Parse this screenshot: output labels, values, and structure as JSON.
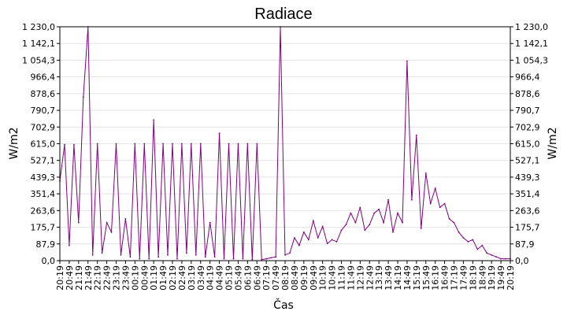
{
  "chart_data": {
    "type": "line",
    "title": "Radiace",
    "xlabel": "Čas",
    "ylabel": "W/m2",
    "ylabel_right": "W/m2",
    "grid": true,
    "ylim": [
      0,
      1230
    ],
    "yticks": [
      "0,0",
      "87,9",
      "175,7",
      "263,6",
      "351,4",
      "439,3",
      "527,1",
      "615,0",
      "702,9",
      "790,7",
      "878,6",
      "966,4",
      "1 054,3",
      "1 142,1",
      "1 230,0"
    ],
    "xticks": [
      "20:19",
      "20:49",
      "21:19",
      "21:49",
      "22:19",
      "22:49",
      "23:19",
      "23:49",
      "00:19",
      "00:49",
      "01:19",
      "01:49",
      "02:19",
      "02:49",
      "03:19",
      "03:49",
      "04:19",
      "04:49",
      "05:19",
      "05:49",
      "06:19",
      "06:49",
      "07:19",
      "07:49",
      "08:19",
      "08:49",
      "09:19",
      "09:49",
      "10:19",
      "10:49",
      "11:19",
      "11:49",
      "12:19",
      "12:49",
      "13:19",
      "13:49",
      "14:19",
      "14:49",
      "15:19",
      "15:49",
      "16:19",
      "16:49",
      "17:19",
      "17:49",
      "18:19",
      "18:49",
      "19:19",
      "19:49",
      "20:19"
    ],
    "series": [
      {
        "color": "#800080",
        "x": [
          "20:19",
          "20:34",
          "20:49",
          "21:04",
          "21:19",
          "21:34",
          "21:49",
          "22:04",
          "22:19",
          "22:34",
          "22:49",
          "23:04",
          "23:19",
          "23:34",
          "23:49",
          "00:04",
          "00:19",
          "00:34",
          "00:49",
          "01:04",
          "01:19",
          "01:34",
          "01:49",
          "02:04",
          "02:19",
          "02:34",
          "02:49",
          "03:04",
          "03:19",
          "03:34",
          "03:49",
          "04:04",
          "04:19",
          "04:34",
          "04:49",
          "05:04",
          "05:19",
          "05:34",
          "05:49",
          "06:04",
          "06:19",
          "06:34",
          "06:49",
          "07:04",
          "07:19",
          "07:34",
          "07:49",
          "08:04",
          "08:19",
          "08:34",
          "08:49",
          "09:04",
          "09:19",
          "09:34",
          "09:49",
          "10:04",
          "10:19",
          "10:34",
          "10:49",
          "11:04",
          "11:19",
          "11:34",
          "11:49",
          "12:04",
          "12:19",
          "12:34",
          "12:49",
          "13:04",
          "13:19",
          "13:34",
          "13:49",
          "14:04",
          "14:19",
          "14:34",
          "14:49",
          "15:04",
          "15:19",
          "15:34",
          "15:49",
          "16:04",
          "16:19",
          "16:34",
          "16:49",
          "17:04",
          "17:19",
          "17:34",
          "17:49",
          "18:04",
          "18:19",
          "18:34",
          "18:49",
          "19:04",
          "19:19",
          "19:34",
          "19:49",
          "20:04",
          "20:19"
        ],
        "y": [
          420,
          610,
          80,
          610,
          200,
          860,
          1230,
          30,
          615,
          40,
          200,
          150,
          615,
          30,
          220,
          20,
          615,
          10,
          615,
          10,
          740,
          20,
          615,
          30,
          615,
          10,
          615,
          40,
          615,
          30,
          615,
          20,
          200,
          20,
          670,
          10,
          615,
          10,
          615,
          10,
          615,
          5,
          615,
          5,
          10,
          15,
          20,
          1230,
          30,
          40,
          120,
          80,
          150,
          110,
          210,
          120,
          180,
          90,
          110,
          100,
          160,
          190,
          250,
          200,
          280,
          160,
          190,
          250,
          270,
          200,
          320,
          150,
          250,
          200,
          1050,
          320,
          660,
          170,
          460,
          300,
          380,
          280,
          300,
          220,
          200,
          150,
          120,
          100,
          110,
          60,
          80,
          40,
          30,
          20,
          10,
          10,
          10
        ]
      }
    ]
  }
}
